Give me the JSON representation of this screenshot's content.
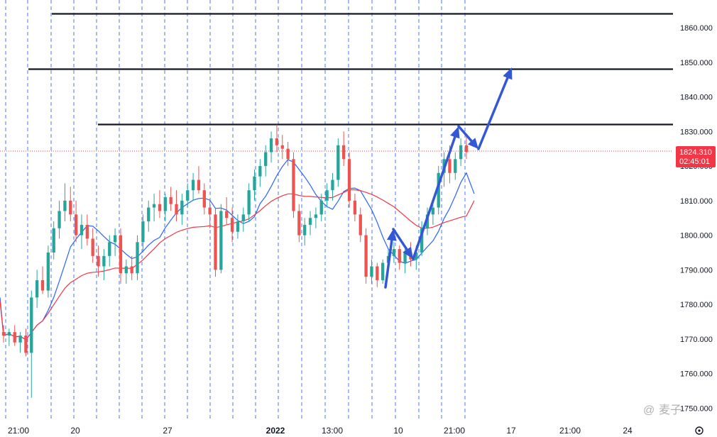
{
  "chart_data": {
    "type": "candlestick",
    "y_axis": {
      "range": [
        1747,
        1868
      ],
      "ticks": [
        "1750.000",
        "1760.000",
        "1770.000",
        "1780.000",
        "1790.000",
        "1800.000",
        "1810.000",
        "1820.000",
        "1830.000",
        "1840.000",
        "1850.000",
        "1860.000"
      ]
    },
    "x_axis": {
      "ticks": [
        {
          "label": "21:00",
          "bold": false
        },
        {
          "label": "20",
          "bold": false
        },
        {
          "label": "27",
          "bold": false
        },
        {
          "label": "2022",
          "bold": true
        },
        {
          "label": "13:00",
          "bold": false
        },
        {
          "label": "10",
          "bold": false
        },
        {
          "label": "21:00",
          "bold": false
        },
        {
          "label": "17",
          "bold": false
        },
        {
          "label": "21:00",
          "bold": false
        },
        {
          "label": "24",
          "bold": false
        }
      ]
    },
    "current_price": {
      "value": 1824.31,
      "label": "1824.310",
      "countdown": "02:45:01",
      "color": "#f23645"
    },
    "horizontal_levels": [
      1864,
      1848,
      1832
    ],
    "colors": {
      "up": "#26a69a",
      "down": "#ef5350",
      "ma_fast": "#2962ff",
      "ma_slow": "#f23645",
      "arrows": "#3457d5",
      "grid": "#2962ff"
    },
    "candles": [
      [
        1772,
        1774,
        1769,
        1771
      ],
      [
        1771,
        1773,
        1768,
        1772
      ],
      [
        1772,
        1774,
        1768,
        1769
      ],
      [
        1769,
        1772,
        1766,
        1771
      ],
      [
        1771,
        1773,
        1765,
        1766
      ],
      [
        1766,
        1784,
        1753,
        1782
      ],
      [
        1782,
        1790,
        1779,
        1787
      ],
      [
        1787,
        1791,
        1783,
        1784
      ],
      [
        1784,
        1797,
        1782,
        1795
      ],
      [
        1795,
        1804,
        1793,
        1802
      ],
      [
        1802,
        1810,
        1799,
        1807
      ],
      [
        1807,
        1815,
        1804,
        1810
      ],
      [
        1810,
        1814,
        1804,
        1806
      ],
      [
        1806,
        1810,
        1798,
        1800
      ],
      [
        1800,
        1806,
        1796,
        1803
      ],
      [
        1803,
        1806,
        1797,
        1799
      ],
      [
        1799,
        1802,
        1792,
        1794
      ],
      [
        1794,
        1797,
        1788,
        1791
      ],
      [
        1791,
        1796,
        1787,
        1794
      ],
      [
        1794,
        1800,
        1791,
        1798
      ],
      [
        1798,
        1802,
        1794,
        1800
      ],
      [
        1800,
        1802,
        1786,
        1789
      ],
      [
        1789,
        1793,
        1786,
        1791
      ],
      [
        1791,
        1794,
        1787,
        1789
      ],
      [
        1789,
        1800,
        1787,
        1798
      ],
      [
        1798,
        1806,
        1795,
        1804
      ],
      [
        1804,
        1810,
        1801,
        1808
      ],
      [
        1808,
        1812,
        1804,
        1809
      ],
      [
        1809,
        1813,
        1805,
        1807
      ],
      [
        1807,
        1812,
        1804,
        1811
      ],
      [
        1811,
        1814,
        1807,
        1809
      ],
      [
        1809,
        1813,
        1804,
        1806
      ],
      [
        1806,
        1812,
        1803,
        1810
      ],
      [
        1810,
        1815,
        1808,
        1813
      ],
      [
        1813,
        1818,
        1810,
        1816
      ],
      [
        1816,
        1820,
        1812,
        1813
      ],
      [
        1813,
        1815,
        1806,
        1808
      ],
      [
        1808,
        1810,
        1802,
        1806
      ],
      [
        1806,
        1808,
        1788,
        1790
      ],
      [
        1790,
        1809,
        1789,
        1807
      ],
      [
        1807,
        1811,
        1803,
        1805
      ],
      [
        1805,
        1808,
        1798,
        1801
      ],
      [
        1801,
        1806,
        1799,
        1804
      ],
      [
        1804,
        1808,
        1801,
        1806
      ],
      [
        1806,
        1815,
        1804,
        1813
      ],
      [
        1813,
        1819,
        1810,
        1817
      ],
      [
        1817,
        1822,
        1814,
        1820
      ],
      [
        1820,
        1826,
        1817,
        1824
      ],
      [
        1824,
        1830,
        1821,
        1828
      ],
      [
        1828,
        1832,
        1824,
        1826
      ],
      [
        1826,
        1829,
        1822,
        1825
      ],
      [
        1825,
        1827,
        1820,
        1822
      ],
      [
        1822,
        1824,
        1805,
        1807
      ],
      [
        1807,
        1809,
        1798,
        1800
      ],
      [
        1800,
        1805,
        1797,
        1803
      ],
      [
        1803,
        1807,
        1800,
        1805
      ],
      [
        1805,
        1808,
        1802,
        1806
      ],
      [
        1806,
        1812,
        1804,
        1810
      ],
      [
        1810,
        1815,
        1808,
        1813
      ],
      [
        1813,
        1818,
        1810,
        1816
      ],
      [
        1816,
        1828,
        1814,
        1826
      ],
      [
        1826,
        1830,
        1820,
        1822
      ],
      [
        1822,
        1824,
        1808,
        1810
      ],
      [
        1810,
        1812,
        1804,
        1806
      ],
      [
        1806,
        1808,
        1798,
        1800
      ],
      [
        1800,
        1802,
        1786,
        1788
      ],
      [
        1788,
        1793,
        1786,
        1791
      ],
      [
        1791,
        1792,
        1785,
        1787
      ],
      [
        1787,
        1793,
        1786,
        1792
      ],
      [
        1792,
        1796,
        1789,
        1794
      ],
      [
        1794,
        1798,
        1792,
        1796
      ],
      [
        1796,
        1797,
        1790,
        1792
      ],
      [
        1792,
        1796,
        1789,
        1795
      ],
      [
        1795,
        1798,
        1791,
        1793
      ],
      [
        1793,
        1797,
        1790,
        1795
      ],
      [
        1795,
        1804,
        1794,
        1802
      ],
      [
        1802,
        1808,
        1800,
        1806
      ],
      [
        1806,
        1810,
        1803,
        1808
      ],
      [
        1808,
        1820,
        1806,
        1818
      ],
      [
        1818,
        1824,
        1814,
        1822
      ],
      [
        1822,
        1826,
        1815,
        1818
      ],
      [
        1818,
        1824,
        1816,
        1822
      ],
      [
        1822,
        1828,
        1820,
        1826
      ],
      [
        1826,
        1829,
        1822,
        1824
      ]
    ]
  },
  "watermark": {
    "at_icon": "@",
    "text": "麦子"
  },
  "settings_icon": "gear-icon"
}
